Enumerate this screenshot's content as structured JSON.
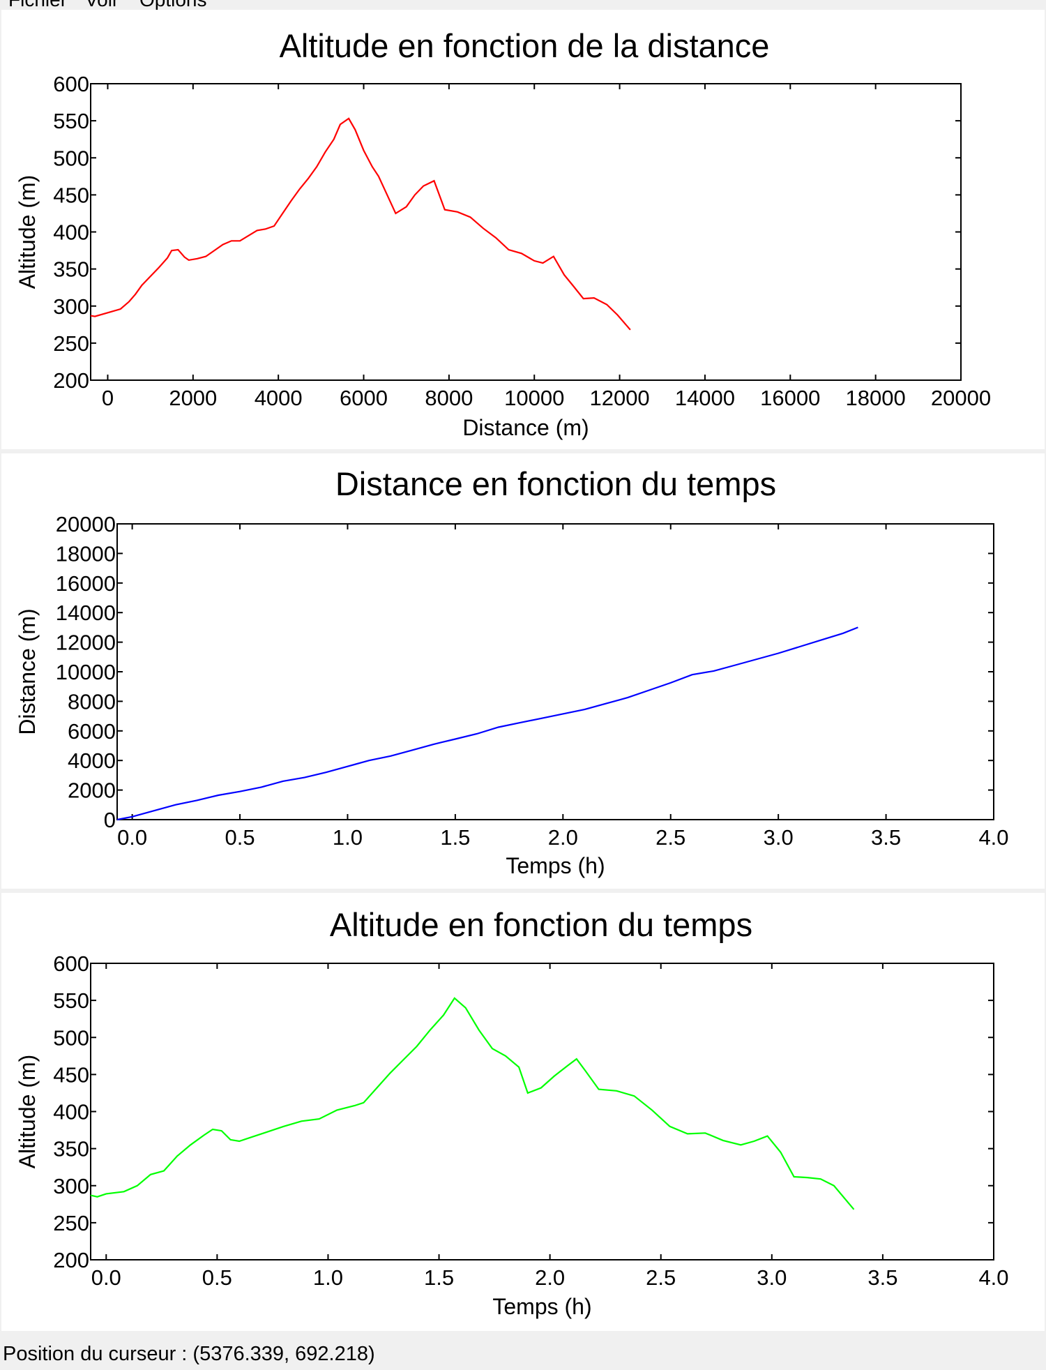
{
  "menubar": {
    "items": [
      "Fichier",
      "Voir",
      "Options"
    ]
  },
  "statusbar": {
    "cursor_label": "Position du curseur : (5376.339, 692.218)"
  },
  "chart_data": [
    {
      "type": "line",
      "title": "Altitude en fonction de la distance",
      "xlabel": "Distance (m)",
      "ylabel": "Altitude (m)",
      "xlim": [
        -400,
        20000
      ],
      "ylim": [
        200,
        600
      ],
      "xticks": [
        0,
        2000,
        4000,
        6000,
        8000,
        10000,
        12000,
        14000,
        16000,
        18000,
        20000
      ],
      "yticks": [
        200,
        250,
        300,
        350,
        400,
        450,
        500,
        550,
        600
      ],
      "grid": false,
      "color": "#ff0000",
      "x": [
        -400,
        -300,
        0,
        300,
        500,
        650,
        800,
        1000,
        1200,
        1400,
        1500,
        1650,
        1800,
        1900,
        2100,
        2300,
        2500,
        2700,
        2900,
        3100,
        3300,
        3500,
        3700,
        3900,
        4100,
        4300,
        4500,
        4700,
        4900,
        5100,
        5300,
        5450,
        5650,
        5800,
        6000,
        6200,
        6350,
        6550,
        6750,
        7000,
        7200,
        7400,
        7650,
        7900,
        8200,
        8500,
        8800,
        9100,
        9400,
        9700,
        10000,
        10200,
        10450,
        10700,
        10900,
        11150,
        11400,
        11700,
        11950,
        12250
      ],
      "y": [
        287,
        286,
        291,
        296,
        306,
        316,
        328,
        340,
        352,
        365,
        375,
        376,
        366,
        362,
        364,
        367,
        375,
        383,
        388,
        388,
        395,
        402,
        404,
        408,
        425,
        442,
        458,
        472,
        488,
        508,
        525,
        545,
        553,
        538,
        510,
        488,
        475,
        450,
        425,
        434,
        450,
        462,
        469,
        430,
        427,
        420,
        405,
        392,
        376,
        371,
        361,
        358,
        367,
        342,
        328,
        310,
        311,
        302,
        288,
        268
      ]
    },
    {
      "type": "line",
      "title": "Distance en fonction du temps",
      "xlabel": "Temps (h)",
      "ylabel": "Distance (m)",
      "xlim": [
        -0.07,
        4.0
      ],
      "ylim": [
        0,
        20000
      ],
      "xticks": [
        0.0,
        0.5,
        1.0,
        1.5,
        2.0,
        2.5,
        3.0,
        3.5,
        4.0
      ],
      "xtick_labels": [
        "0.0",
        "0.5",
        "1.0",
        "1.5",
        "2.0",
        "2.5",
        "3.0",
        "3.5",
        "4.0"
      ],
      "yticks": [
        0,
        2000,
        4000,
        6000,
        8000,
        10000,
        12000,
        14000,
        16000,
        18000,
        20000
      ],
      "grid": false,
      "color": "#0000ff",
      "x": [
        -0.07,
        0.0,
        0.1,
        0.2,
        0.3,
        0.4,
        0.5,
        0.6,
        0.7,
        0.8,
        0.9,
        1.0,
        1.1,
        1.2,
        1.3,
        1.4,
        1.5,
        1.6,
        1.7,
        1.8,
        1.9,
        2.0,
        2.1,
        2.2,
        2.3,
        2.4,
        2.5,
        2.6,
        2.7,
        2.8,
        2.9,
        3.0,
        3.1,
        3.2,
        3.3,
        3.37
      ],
      "y": [
        0,
        200,
        600,
        1000,
        1300,
        1650,
        1900,
        2200,
        2600,
        2850,
        3200,
        3600,
        4000,
        4300,
        4700,
        5100,
        5450,
        5800,
        6250,
        6550,
        6850,
        7150,
        7450,
        7850,
        8250,
        8750,
        9250,
        9800,
        10050,
        10450,
        10850,
        11250,
        11700,
        12150,
        12600,
        13000
      ]
    },
    {
      "type": "line",
      "title": "Altitude en fonction du temps",
      "xlabel": "Temps (h)",
      "ylabel": "Altitude (m)",
      "xlim": [
        -0.07,
        4.0
      ],
      "ylim": [
        200,
        600
      ],
      "xticks": [
        0.0,
        0.5,
        1.0,
        1.5,
        2.0,
        2.5,
        3.0,
        3.5,
        4.0
      ],
      "xtick_labels": [
        "0.0",
        "0.5",
        "1.0",
        "1.5",
        "2.0",
        "2.5",
        "3.0",
        "3.5",
        "4.0"
      ],
      "yticks": [
        200,
        250,
        300,
        350,
        400,
        450,
        500,
        550,
        600
      ],
      "grid": false,
      "color": "#00ff00",
      "x": [
        -0.07,
        -0.04,
        0.0,
        0.08,
        0.14,
        0.2,
        0.26,
        0.32,
        0.38,
        0.44,
        0.48,
        0.52,
        0.56,
        0.6,
        0.65,
        0.72,
        0.8,
        0.88,
        0.96,
        1.04,
        1.08,
        1.12,
        1.16,
        1.22,
        1.28,
        1.34,
        1.4,
        1.46,
        1.52,
        1.57,
        1.62,
        1.68,
        1.74,
        1.8,
        1.86,
        1.9,
        1.96,
        2.02,
        2.08,
        2.12,
        2.16,
        2.22,
        2.3,
        2.38,
        2.46,
        2.54,
        2.62,
        2.7,
        2.78,
        2.86,
        2.92,
        2.98,
        3.04,
        3.1,
        3.16,
        3.22,
        3.28,
        3.37
      ],
      "y": [
        287,
        285,
        289,
        292,
        300,
        315,
        320,
        340,
        355,
        368,
        376,
        374,
        362,
        360,
        365,
        372,
        380,
        387,
        390,
        402,
        405,
        408,
        412,
        432,
        452,
        470,
        488,
        510,
        530,
        553,
        540,
        510,
        485,
        475,
        460,
        425,
        432,
        448,
        462,
        471,
        455,
        430,
        428,
        421,
        402,
        380,
        370,
        371,
        361,
        355,
        360,
        367,
        345,
        312,
        311,
        309,
        300,
        268
      ]
    }
  ]
}
